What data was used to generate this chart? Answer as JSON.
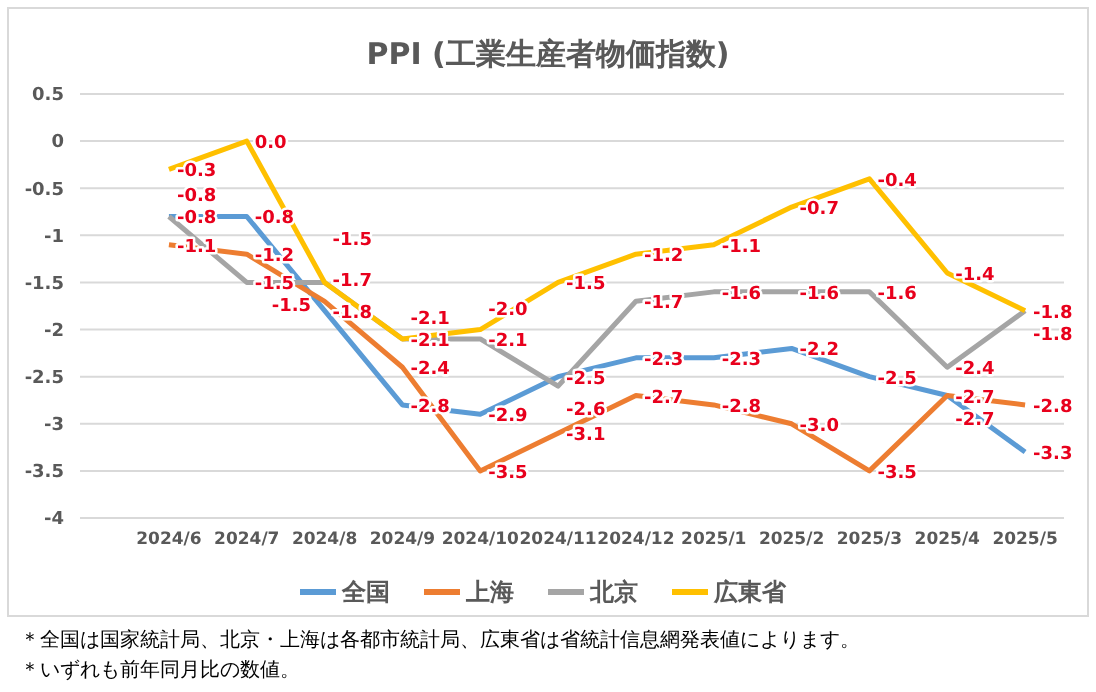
{
  "chart_data": {
    "type": "line",
    "title": "PPI (工業生産者物価指数)",
    "categories": [
      "2024/6",
      "2024/7",
      "2024/8",
      "2024/9",
      "2024/10",
      "2024/11",
      "2024/12",
      "2025/1",
      "2025/2",
      "2025/3",
      "2025/4",
      "2025/5"
    ],
    "series": [
      {
        "name": "全国",
        "color": "#5b9bd5",
        "values": [
          -0.8,
          -0.8,
          -1.8,
          -2.8,
          -2.9,
          -2.5,
          -2.3,
          -2.3,
          -2.2,
          -2.5,
          -2.7,
          -3.3
        ],
        "value_labels": [
          "-0.8",
          "-0.8",
          "-1.8",
          "-2.8",
          "-2.9",
          "-2.5",
          "-2.3",
          "-2.3",
          "-2.2",
          "-2.5",
          "-2.7",
          "-3.3"
        ]
      },
      {
        "name": "上海",
        "color": "#ed7d31",
        "values": [
          -1.1,
          -1.2,
          -1.7,
          -2.4,
          -3.5,
          -3.1,
          -2.7,
          -2.8,
          -3.0,
          -3.5,
          -2.7,
          -2.8
        ],
        "value_labels": [
          "-1.1",
          "-1.2",
          "-1.7",
          "-2.4",
          "-3.5",
          "-3.1",
          "-2.7",
          "-2.8",
          "-3.0",
          "-3.5",
          "-2.7",
          "-2.8"
        ]
      },
      {
        "name": "北京",
        "color": "#a5a5a5",
        "values": [
          -0.8,
          -1.5,
          -1.5,
          -2.1,
          -2.1,
          -2.6,
          -1.7,
          -1.6,
          -1.6,
          -1.6,
          -2.4,
          -1.8
        ],
        "value_labels": [
          "-0.8",
          "-1.5",
          "-1.5",
          "-2.1",
          "-2.1",
          "-2.6",
          "-1.7",
          "-1.6",
          "-1.6",
          "-1.6",
          "-2.4",
          "-1.8"
        ]
      },
      {
        "name": "広東省",
        "color": "#ffc000",
        "values": [
          -0.3,
          0.0,
          -1.5,
          -2.1,
          -2.0,
          -1.5,
          -1.2,
          -1.1,
          -0.7,
          -0.4,
          -1.4,
          -1.8
        ],
        "value_labels": [
          "-0.3",
          "0.0",
          "-1.5",
          "-2.1",
          "-2.0",
          "-1.5",
          "-1.2",
          "-1.1",
          "-0.7",
          "-0.4",
          "-1.4",
          "-1.8"
        ]
      }
    ],
    "ylim": [
      -4,
      0.5
    ],
    "yticks": [
      -4,
      -3.5,
      -3,
      -2.5,
      -2,
      -1.5,
      -1,
      -0.5,
      0,
      0.5
    ],
    "grid": "y",
    "legend": "bottom",
    "marker": "none",
    "line_style": "solid",
    "annotations": [
      "＊全国は国家統計局、北京・上海は各都市統計局、広東省は省統計信息網発表値によります。",
      "＊いずれも前年同月比の数値。"
    ]
  }
}
